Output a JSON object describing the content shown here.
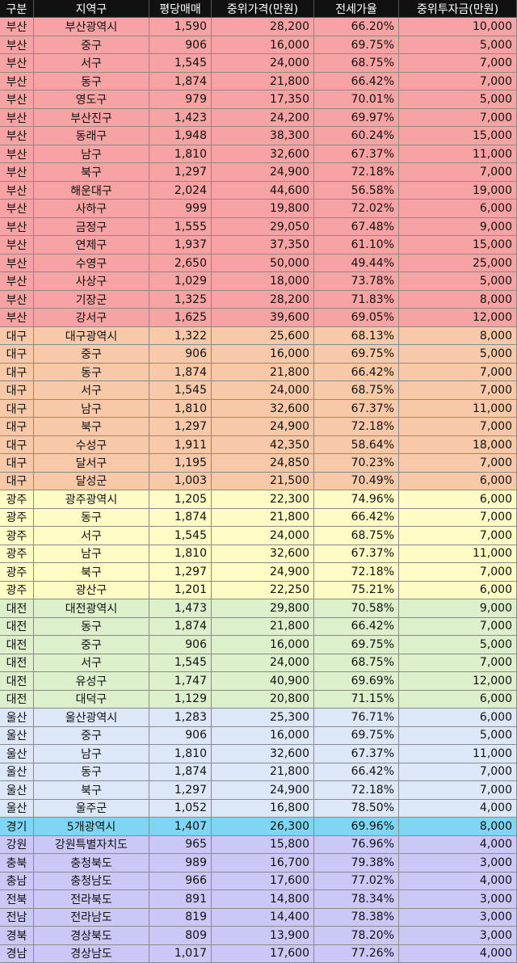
{
  "table": {
    "header": [
      "구분",
      "지역구",
      "평당매매",
      "중위가격(만원)",
      "전세가율",
      "중위투자금(만원)"
    ],
    "groups": [
      {
        "color": "#f7a3a3",
        "rows": [
          [
            "부산",
            "부산광역시",
            "1,590",
            "28,200",
            "66.20%",
            "10,000"
          ],
          [
            "부산",
            "중구",
            "906",
            "16,000",
            "69.75%",
            "5,000"
          ],
          [
            "부산",
            "서구",
            "1,545",
            "24,000",
            "68.75%",
            "7,000"
          ],
          [
            "부산",
            "동구",
            "1,874",
            "21,800",
            "66.42%",
            "7,000"
          ],
          [
            "부산",
            "영도구",
            "979",
            "17,350",
            "70.01%",
            "5,000"
          ],
          [
            "부산",
            "부산진구",
            "1,423",
            "24,200",
            "69.97%",
            "7,000"
          ],
          [
            "부산",
            "동래구",
            "1,948",
            "38,300",
            "60.24%",
            "15,000"
          ],
          [
            "부산",
            "남구",
            "1,810",
            "32,600",
            "67.37%",
            "11,000"
          ],
          [
            "부산",
            "북구",
            "1,297",
            "24,900",
            "72.18%",
            "7,000"
          ],
          [
            "부산",
            "해운대구",
            "2,024",
            "44,600",
            "56.58%",
            "19,000"
          ],
          [
            "부산",
            "사하구",
            "999",
            "19,800",
            "72.02%",
            "6,000"
          ],
          [
            "부산",
            "금정구",
            "1,555",
            "29,050",
            "67.48%",
            "9,000"
          ],
          [
            "부산",
            "연제구",
            "1,937",
            "37,350",
            "61.10%",
            "15,000"
          ],
          [
            "부산",
            "수영구",
            "2,650",
            "50,000",
            "49.44%",
            "25,000"
          ],
          [
            "부산",
            "사상구",
            "1,029",
            "18,000",
            "73.78%",
            "5,000"
          ],
          [
            "부산",
            "기장군",
            "1,325",
            "28,200",
            "71.83%",
            "8,000"
          ],
          [
            "부산",
            "강서구",
            "1,625",
            "39,600",
            "69.05%",
            "12,000"
          ]
        ]
      },
      {
        "color": "#f8c9a9",
        "rows": [
          [
            "대구",
            "대구광역시",
            "1,322",
            "25,600",
            "68.13%",
            "8,000"
          ],
          [
            "대구",
            "중구",
            "906",
            "16,000",
            "69.75%",
            "5,000"
          ],
          [
            "대구",
            "동구",
            "1,874",
            "21,800",
            "66.42%",
            "7,000"
          ],
          [
            "대구",
            "서구",
            "1,545",
            "24,000",
            "68.75%",
            "7,000"
          ],
          [
            "대구",
            "남구",
            "1,810",
            "32,600",
            "67.37%",
            "11,000"
          ],
          [
            "대구",
            "북구",
            "1,297",
            "24,900",
            "72.18%",
            "7,000"
          ],
          [
            "대구",
            "수성구",
            "1,911",
            "42,350",
            "58.64%",
            "18,000"
          ],
          [
            "대구",
            "달서구",
            "1,195",
            "24,850",
            "70.23%",
            "7,000"
          ],
          [
            "대구",
            "달성군",
            "1,003",
            "21,500",
            "70.49%",
            "6,000"
          ]
        ]
      },
      {
        "color": "#fdfcc4",
        "rows": [
          [
            "광주",
            "광주광역시",
            "1,205",
            "22,300",
            "74.96%",
            "6,000"
          ],
          [
            "광주",
            "동구",
            "1,874",
            "21,800",
            "66.42%",
            "7,000"
          ],
          [
            "광주",
            "서구",
            "1,545",
            "24,000",
            "68.75%",
            "7,000"
          ],
          [
            "광주",
            "남구",
            "1,810",
            "32,600",
            "67.37%",
            "11,000"
          ],
          [
            "광주",
            "북구",
            "1,297",
            "24,900",
            "72.18%",
            "7,000"
          ],
          [
            "광주",
            "광산구",
            "1,201",
            "22,250",
            "75.21%",
            "6,000"
          ]
        ]
      },
      {
        "color": "#ddf0cc",
        "rows": [
          [
            "대전",
            "대전광역시",
            "1,473",
            "29,800",
            "70.58%",
            "9,000"
          ],
          [
            "대전",
            "동구",
            "1,874",
            "21,800",
            "66.42%",
            "7,000"
          ],
          [
            "대전",
            "중구",
            "906",
            "16,000",
            "69.75%",
            "5,000"
          ],
          [
            "대전",
            "서구",
            "1,545",
            "24,000",
            "68.75%",
            "7,000"
          ],
          [
            "대전",
            "유성구",
            "1,747",
            "40,900",
            "69.69%",
            "12,000"
          ],
          [
            "대전",
            "대덕구",
            "1,129",
            "20,800",
            "71.15%",
            "6,000"
          ]
        ]
      },
      {
        "color": "#dce8f8",
        "rows": [
          [
            "울산",
            "울산광역시",
            "1,283",
            "25,300",
            "76.71%",
            "6,000"
          ],
          [
            "울산",
            "중구",
            "906",
            "16,000",
            "69.75%",
            "5,000"
          ],
          [
            "울산",
            "남구",
            "1,810",
            "32,600",
            "67.37%",
            "11,000"
          ],
          [
            "울산",
            "동구",
            "1,874",
            "21,800",
            "66.42%",
            "7,000"
          ],
          [
            "울산",
            "북구",
            "1,297",
            "24,900",
            "72.18%",
            "7,000"
          ],
          [
            "울산",
            "울주군",
            "1,052",
            "16,800",
            "78.50%",
            "4,000"
          ]
        ]
      },
      {
        "color": "#7fd6f2",
        "rows": [
          [
            "경기",
            "5개광역시",
            "1,407",
            "26,300",
            "69.96%",
            "8,000"
          ]
        ]
      },
      {
        "color": "#c9c8f7",
        "rows": [
          [
            "강원",
            "강원특별자치도",
            "965",
            "15,800",
            "76.96%",
            "4,000"
          ],
          [
            "충북",
            "충청북도",
            "989",
            "16,700",
            "79.38%",
            "3,000"
          ],
          [
            "충남",
            "충청남도",
            "966",
            "17,600",
            "77.02%",
            "4,000"
          ],
          [
            "전북",
            "전라북도",
            "891",
            "14,800",
            "78.34%",
            "3,000"
          ],
          [
            "전남",
            "전라남도",
            "819",
            "14,400",
            "78.38%",
            "3,000"
          ],
          [
            "경북",
            "경상북도",
            "809",
            "13,900",
            "78.20%",
            "3,000"
          ],
          [
            "경남",
            "경상남도",
            "1,017",
            "17,600",
            "77.26%",
            "4,000"
          ]
        ]
      }
    ]
  }
}
